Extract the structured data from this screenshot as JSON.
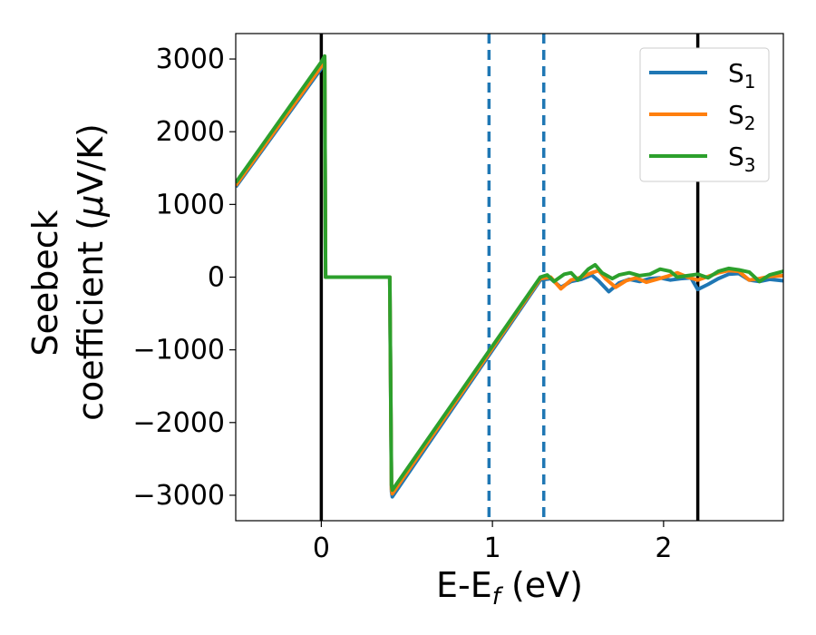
{
  "chart_data": {
    "type": "line",
    "xlabel": {
      "main": "E-E",
      "sub": "f",
      "unit": " (eV)"
    },
    "ylabel": {
      "line1": "Seebeck",
      "line2_pre": "coefficient  (",
      "mu": "μ",
      "line2_post": "V/K)"
    },
    "xlim": [
      -0.5,
      2.7
    ],
    "ylim": [
      -3350,
      3350
    ],
    "xticks": [
      0,
      1,
      2
    ],
    "yticks": [
      -3000,
      -2000,
      -1000,
      0,
      1000,
      2000,
      3000
    ],
    "xtick_labels": [
      "0",
      "1",
      "2"
    ],
    "ytick_labels": [
      "−3000",
      "−2000",
      "−1000",
      "0",
      "1000",
      "2000",
      "3000"
    ],
    "vlines": [
      {
        "x": 0.0,
        "style": "solid",
        "color": "#000000"
      },
      {
        "x": 2.2,
        "style": "solid",
        "color": "#000000"
      },
      {
        "x": 0.98,
        "style": "dashed",
        "color": "#1f77b4"
      },
      {
        "x": 1.3,
        "style": "dashed",
        "color": "#1f77b4"
      }
    ],
    "legend": {
      "placement": "top-right"
    },
    "series": [
      {
        "name": "S",
        "sub": "1",
        "color": "#1f77b4",
        "points": [
          [
            -0.5,
            1240
          ],
          [
            0.0,
            2870
          ],
          [
            0.02,
            2960
          ],
          [
            0.025,
            0
          ],
          [
            0.4,
            0
          ],
          [
            0.41,
            -2950
          ],
          [
            0.415,
            -3020
          ],
          [
            1.28,
            -40
          ],
          [
            1.34,
            -20
          ],
          [
            1.4,
            -140
          ],
          [
            1.46,
            -60
          ],
          [
            1.52,
            -30
          ],
          [
            1.58,
            30
          ],
          [
            1.62,
            -50
          ],
          [
            1.68,
            -200
          ],
          [
            1.74,
            -80
          ],
          [
            1.8,
            -30
          ],
          [
            1.86,
            -60
          ],
          [
            1.92,
            -20
          ],
          [
            1.98,
            -10
          ],
          [
            2.04,
            -40
          ],
          [
            2.1,
            -20
          ],
          [
            2.16,
            -10
          ],
          [
            2.2,
            -170
          ],
          [
            2.26,
            -100
          ],
          [
            2.32,
            -20
          ],
          [
            2.38,
            40
          ],
          [
            2.44,
            50
          ],
          [
            2.5,
            -40
          ],
          [
            2.56,
            -60
          ],
          [
            2.62,
            -30
          ],
          [
            2.7,
            -50
          ]
        ]
      },
      {
        "name": "S",
        "sub": "2",
        "color": "#ff7f0e",
        "points": [
          [
            -0.5,
            1260
          ],
          [
            0.0,
            2900
          ],
          [
            0.02,
            2990
          ],
          [
            0.025,
            0
          ],
          [
            0.4,
            0
          ],
          [
            0.41,
            -2920
          ],
          [
            0.415,
            -2980
          ],
          [
            1.28,
            -20
          ],
          [
            1.34,
            0
          ],
          [
            1.4,
            -160
          ],
          [
            1.46,
            -40
          ],
          [
            1.52,
            0
          ],
          [
            1.58,
            60
          ],
          [
            1.62,
            90
          ],
          [
            1.66,
            -20
          ],
          [
            1.72,
            -140
          ],
          [
            1.78,
            -50
          ],
          [
            1.84,
            -10
          ],
          [
            1.9,
            -70
          ],
          [
            1.96,
            -30
          ],
          [
            2.02,
            10
          ],
          [
            2.08,
            60
          ],
          [
            2.14,
            0
          ],
          [
            2.2,
            -40
          ],
          [
            2.26,
            10
          ],
          [
            2.32,
            60
          ],
          [
            2.38,
            90
          ],
          [
            2.44,
            80
          ],
          [
            2.5,
            -40
          ],
          [
            2.56,
            -20
          ],
          [
            2.62,
            10
          ],
          [
            2.7,
            20
          ]
        ]
      },
      {
        "name": "S",
        "sub": "3",
        "color": "#2ca02c",
        "points": [
          [
            -0.5,
            1300
          ],
          [
            0.0,
            2960
          ],
          [
            0.02,
            3040
          ],
          [
            0.025,
            0
          ],
          [
            0.4,
            0
          ],
          [
            0.41,
            -2860
          ],
          [
            0.415,
            -2930
          ],
          [
            1.28,
            0
          ],
          [
            1.32,
            30
          ],
          [
            1.36,
            -60
          ],
          [
            1.42,
            40
          ],
          [
            1.46,
            60
          ],
          [
            1.5,
            -40
          ],
          [
            1.56,
            110
          ],
          [
            1.6,
            170
          ],
          [
            1.64,
            60
          ],
          [
            1.7,
            -20
          ],
          [
            1.74,
            30
          ],
          [
            1.8,
            60
          ],
          [
            1.86,
            20
          ],
          [
            1.92,
            40
          ],
          [
            1.98,
            110
          ],
          [
            2.04,
            80
          ],
          [
            2.08,
            0
          ],
          [
            2.14,
            20
          ],
          [
            2.2,
            40
          ],
          [
            2.26,
            -10
          ],
          [
            2.32,
            80
          ],
          [
            2.38,
            120
          ],
          [
            2.44,
            100
          ],
          [
            2.5,
            70
          ],
          [
            2.56,
            -60
          ],
          [
            2.62,
            30
          ],
          [
            2.7,
            80
          ]
        ]
      }
    ]
  }
}
